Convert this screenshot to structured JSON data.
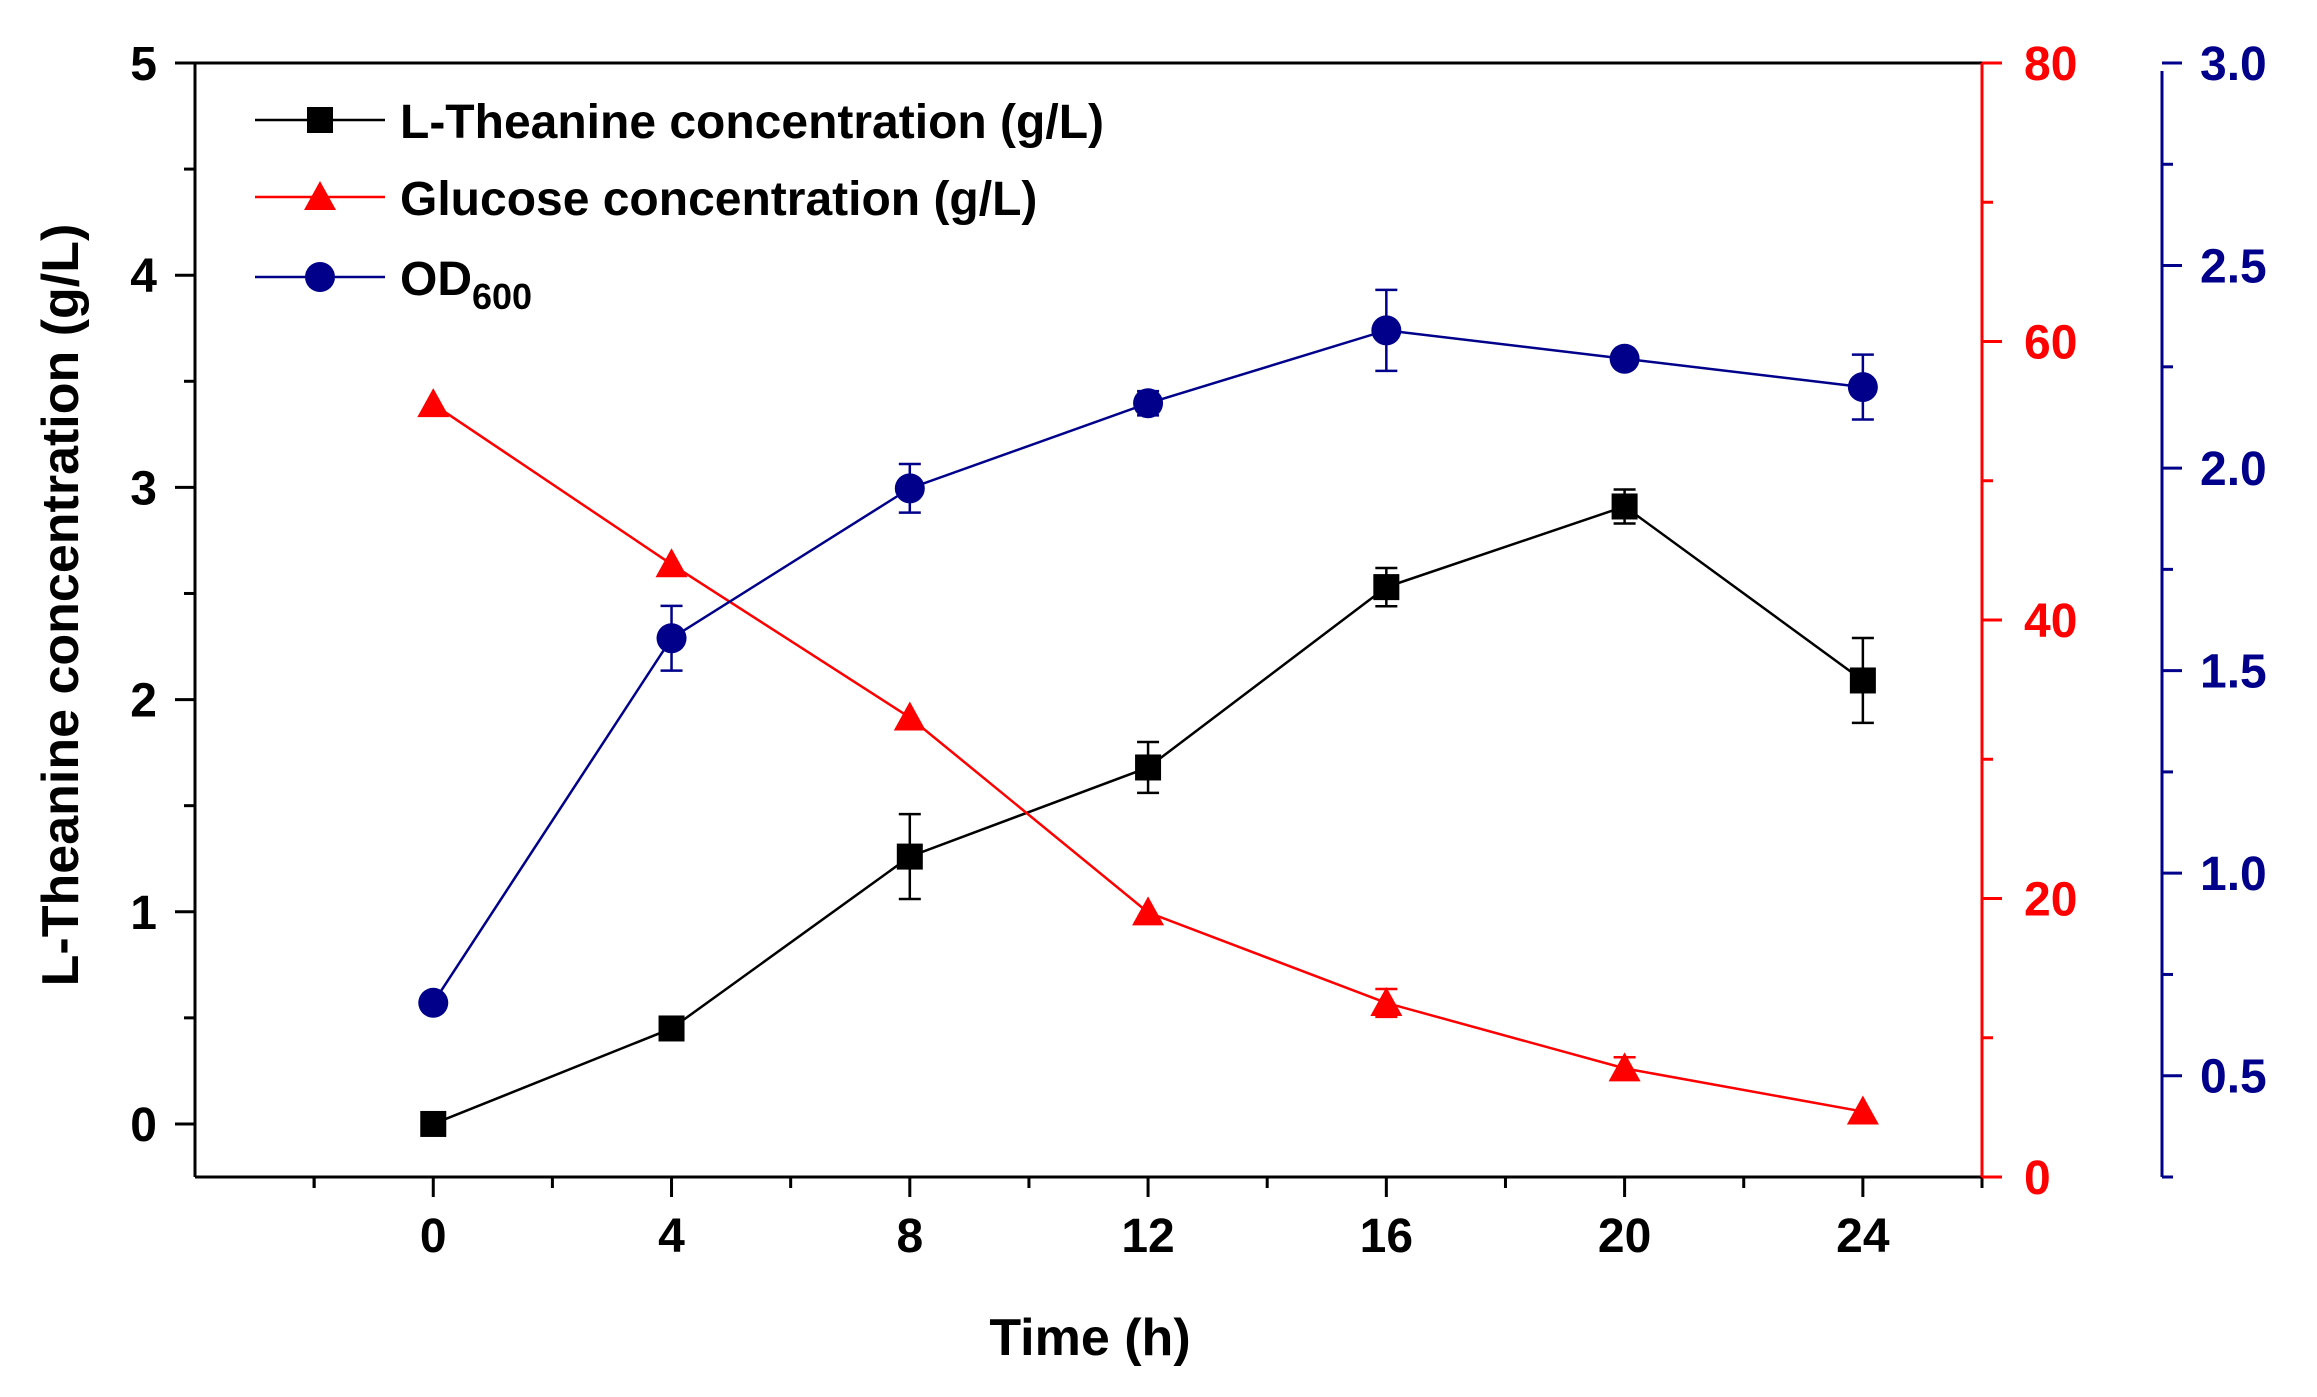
{
  "chart_data": {
    "type": "line",
    "xlabel": "Time (h)",
    "x": [
      0,
      4,
      8,
      12,
      16,
      20,
      24
    ],
    "xlim": [
      -4,
      26
    ],
    "xticks": [
      "0",
      "4",
      "8",
      "12",
      "16",
      "20",
      "24"
    ],
    "axes": {
      "left": {
        "label": "L-Theanine concentration (g/L)",
        "ylim": [
          -0.25,
          5
        ],
        "ticks": [
          "0",
          "1",
          "2",
          "3",
          "4",
          "5"
        ],
        "tick_values": [
          0,
          1,
          2,
          3,
          4,
          5
        ],
        "color": "#000000"
      },
      "right1": {
        "label": "",
        "ylim": [
          0,
          80
        ],
        "ticks": [
          "0",
          "20",
          "40",
          "60",
          "80"
        ],
        "tick_values": [
          0,
          20,
          40,
          60,
          80
        ],
        "color": "#ff0000"
      },
      "right2": {
        "label": "",
        "ylim": [
          0.25,
          3.0
        ],
        "ticks": [
          "0.5",
          "1.0",
          "1.5",
          "2.0",
          "2.5",
          "3.0"
        ],
        "tick_values": [
          0.5,
          1.0,
          1.5,
          2.0,
          2.5,
          3.0
        ],
        "color": "#00008b"
      }
    },
    "series": [
      {
        "name": "L-Theanine concentration (g/L)",
        "axis": "left",
        "marker": "square",
        "color": "#000000",
        "values": [
          0.0,
          0.45,
          1.26,
          1.68,
          2.53,
          2.91,
          2.09
        ],
        "errors": [
          0.0,
          0.0,
          0.2,
          0.12,
          0.09,
          0.08,
          0.2
        ]
      },
      {
        "name": "Glucose concentration (g/L)",
        "axis": "right1",
        "marker": "triangle",
        "color": "#ff0000",
        "values": [
          55.5,
          44.0,
          33.0,
          19.0,
          12.5,
          7.8,
          4.7
        ],
        "errors": [
          0.0,
          0.0,
          0.0,
          0.0,
          1.0,
          0.8,
          0.0
        ]
      },
      {
        "name": "OD600",
        "name_main": "OD",
        "name_sub": "600",
        "axis": "right2",
        "marker": "circle",
        "color": "#00008b",
        "values": [
          0.68,
          1.58,
          1.95,
          2.16,
          2.34,
          2.27,
          2.2
        ],
        "errors": [
          0.0,
          0.08,
          0.06,
          0.03,
          0.1,
          0.0,
          0.08
        ]
      }
    ],
    "legend": "top-left",
    "grid": false
  }
}
